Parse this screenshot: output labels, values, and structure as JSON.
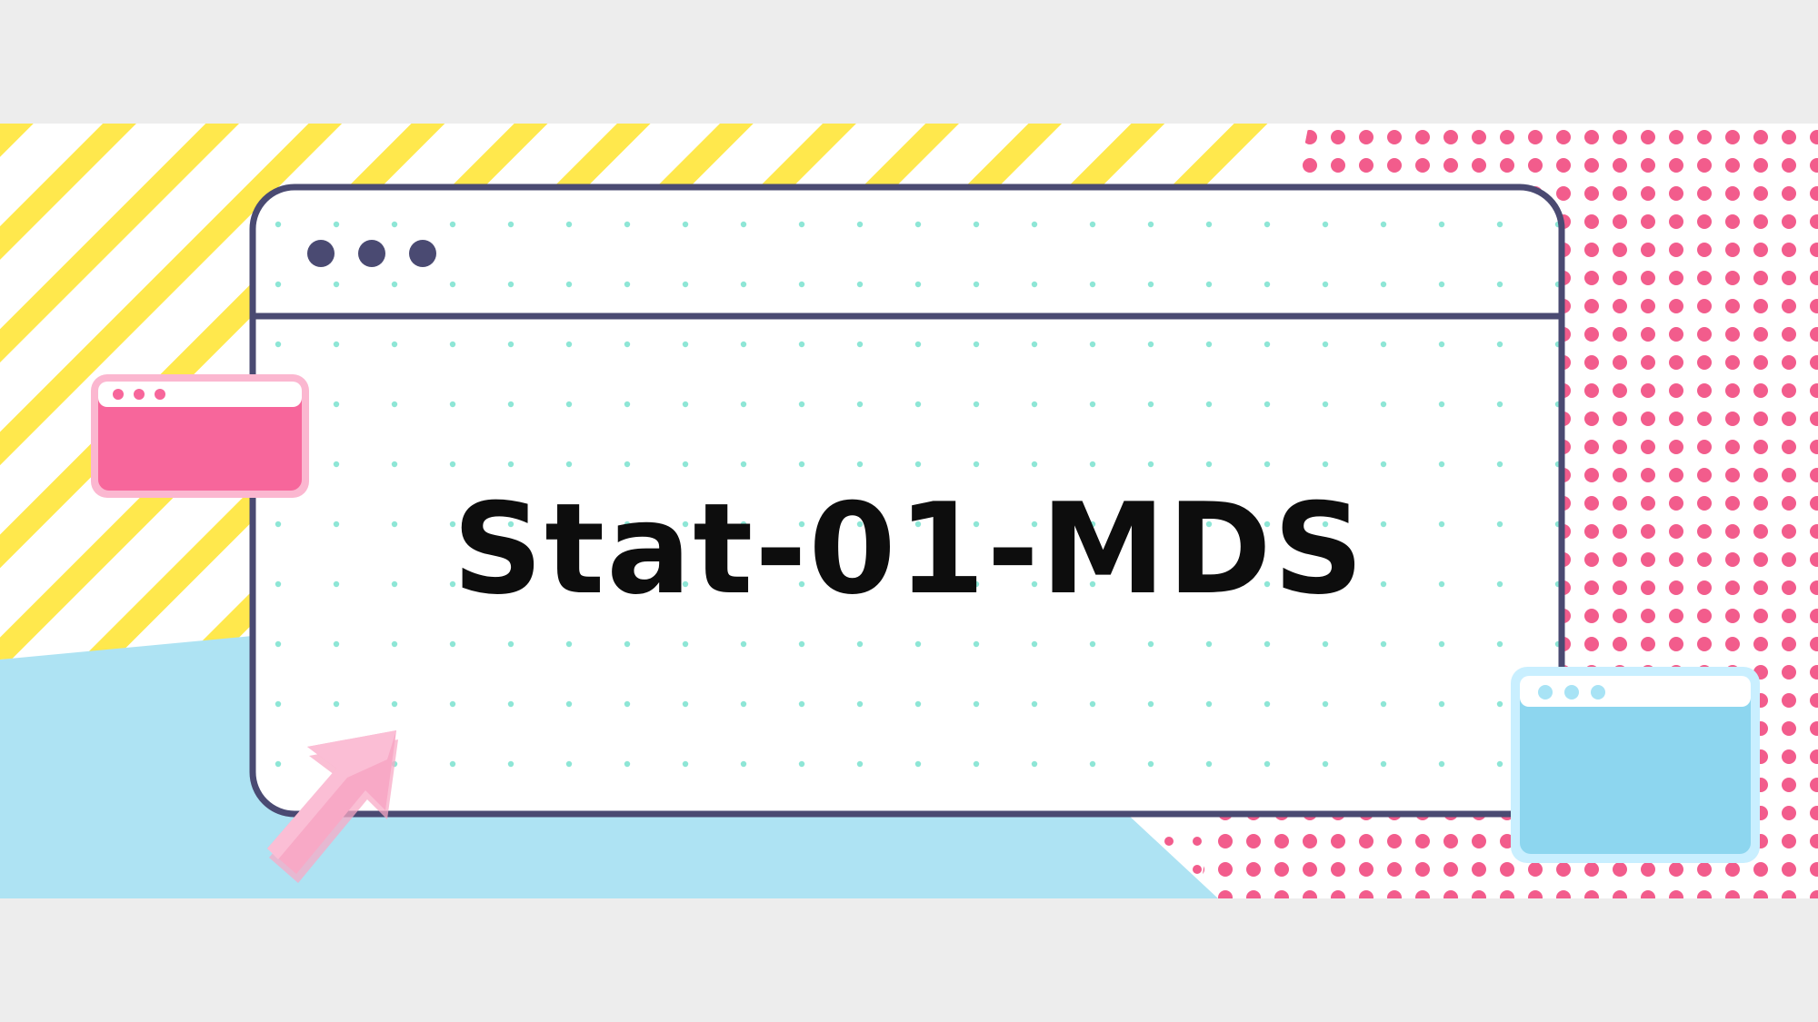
{
  "banner": {
    "title": "Stat-01-MDS"
  },
  "colors": {
    "background": "#ededed",
    "stripe_yellow": "#ffe84d",
    "dot_pink": "#f25c8c",
    "dot_mint": "#8ee6d6",
    "sky_blue": "#aee3f3",
    "window_frame": "#4a4a72",
    "window_pink": "#f7669b",
    "window_blue": "#8dd6ef",
    "arrow_pink": "#f8a9c6"
  },
  "icons": {
    "main_window": "browser-window-icon",
    "cursor": "arrow-cursor-icon"
  }
}
